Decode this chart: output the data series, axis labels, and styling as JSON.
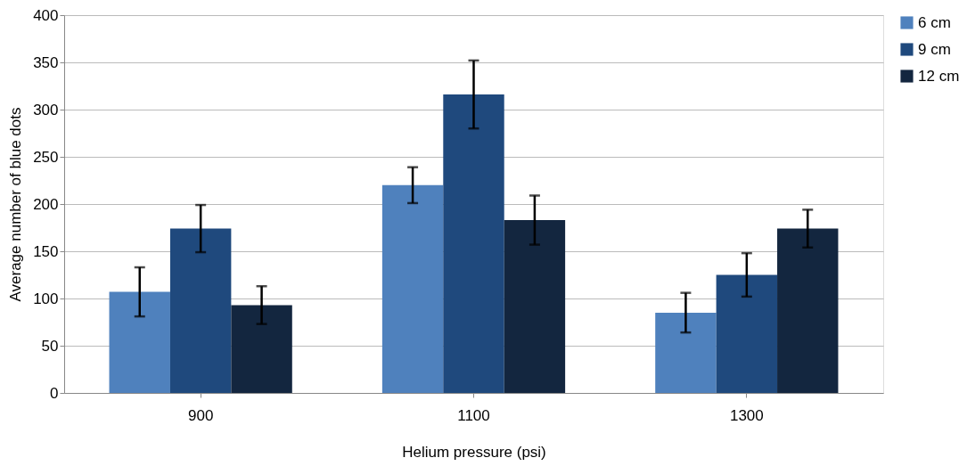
{
  "chart_data": {
    "type": "bar",
    "xlabel": "Helium pressure (psi)",
    "ylabel": "Average number of blue dots",
    "categories": [
      "900",
      "1100",
      "1300"
    ],
    "series": [
      {
        "name": "6 cm",
        "color": "#4f81bd",
        "values": [
          107,
          220,
          85
        ],
        "errors": [
          26,
          19,
          21
        ]
      },
      {
        "name": "9 cm",
        "color": "#1f497d",
        "values": [
          174,
          316,
          125
        ],
        "errors": [
          25,
          36,
          23
        ]
      },
      {
        "name": "12 cm",
        "color": "#13263f",
        "values": [
          93,
          183,
          174
        ],
        "errors": [
          20,
          26,
          20
        ]
      }
    ],
    "ylim": [
      0,
      400
    ],
    "yticks": [
      0,
      50,
      100,
      150,
      200,
      250,
      300,
      350,
      400
    ],
    "grid": "y",
    "legend": "right"
  }
}
